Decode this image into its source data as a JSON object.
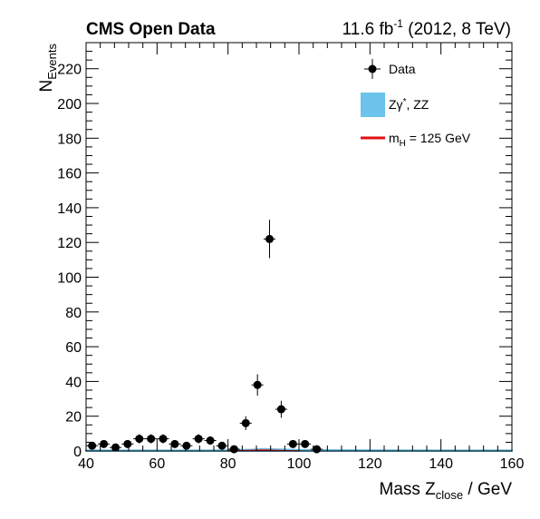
{
  "header": {
    "left": "CMS Open Data",
    "lumi_value": "11.6 fb",
    "lumi_exp": "-1",
    "lumi_rest": " (2012, 8 TeV)"
  },
  "chart_data": {
    "type": "scatter",
    "xlabel_main": "Mass Z",
    "xlabel_sub": "close",
    "xlabel_unit": " / GeV",
    "ylabel_main": "N",
    "ylabel_sub": "Events",
    "xlim": [
      40,
      160
    ],
    "ylim": [
      0,
      235
    ],
    "xticks": [
      40,
      60,
      80,
      100,
      120,
      140,
      160
    ],
    "yticks": [
      0,
      20,
      40,
      60,
      80,
      100,
      120,
      140,
      160,
      180,
      200,
      220
    ],
    "grid": false,
    "legend_position": "top-right",
    "legend": {
      "data": "Data",
      "bkg_main": "Zγ",
      "bkg_sup": "*",
      "bkg_rest": ", ZZ",
      "sig_main": "m",
      "sig_sub": "H",
      "sig_rest": " = 125 GeV"
    },
    "colors": {
      "data": "#000000",
      "background": "#6cc3ec",
      "signal": "#e01010"
    },
    "bin_width": 3.333,
    "data_points": [
      {
        "x": 41.7,
        "y": 3
      },
      {
        "x": 45.0,
        "y": 4
      },
      {
        "x": 48.3,
        "y": 2
      },
      {
        "x": 51.7,
        "y": 4
      },
      {
        "x": 55.0,
        "y": 7
      },
      {
        "x": 58.3,
        "y": 7
      },
      {
        "x": 61.7,
        "y": 7
      },
      {
        "x": 65.0,
        "y": 4
      },
      {
        "x": 68.3,
        "y": 3
      },
      {
        "x": 71.7,
        "y": 7
      },
      {
        "x": 75.0,
        "y": 6
      },
      {
        "x": 78.3,
        "y": 3
      },
      {
        "x": 81.7,
        "y": 1
      },
      {
        "x": 85.0,
        "y": 16
      },
      {
        "x": 88.3,
        "y": 38
      },
      {
        "x": 91.7,
        "y": 122
      },
      {
        "x": 95.0,
        "y": 24
      },
      {
        "x": 98.3,
        "y": 4
      },
      {
        "x": 101.7,
        "y": 4
      },
      {
        "x": 105.0,
        "y": 1
      }
    ],
    "background": {
      "x": [
        40,
        60,
        80,
        86.7,
        90,
        93.3,
        100,
        120,
        140,
        160
      ],
      "y": [
        0.3,
        0.3,
        0.4,
        0.8,
        1.2,
        1.0,
        0.6,
        0.4,
        0.3,
        0.3
      ]
    },
    "signal": {
      "x": [
        80,
        86.7,
        90,
        93.3,
        100
      ],
      "y": [
        0,
        0.3,
        0.5,
        0.3,
        0
      ]
    }
  }
}
